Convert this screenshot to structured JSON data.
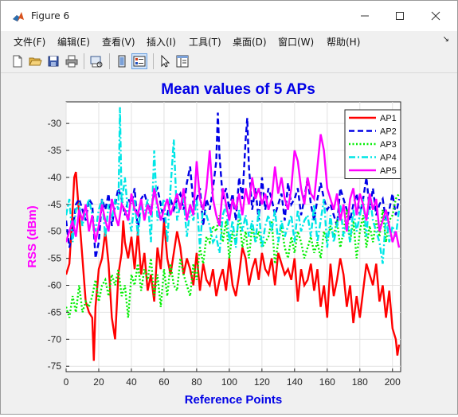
{
  "window": {
    "title": "Figure 6"
  },
  "menu": {
    "file": "文件(F)",
    "edit": "编辑(E)",
    "view": "查看(V)",
    "insert": "插入(I)",
    "tools": "工具(T)",
    "desktop": "桌面(D)",
    "window": "窗口(W)",
    "help": "帮助(H)"
  },
  "toolbar_icons": [
    "new-file-icon",
    "open-folder-icon",
    "save-icon",
    "print-icon",
    "print-preview-icon",
    "figure-tile-icon",
    "property-editor-icon",
    "pointer-icon",
    "plot-browser-icon"
  ],
  "chart_data": {
    "type": "line",
    "title": "Mean values of 5 APs",
    "xlabel": "Reference Points",
    "ylabel": "RSS (dBm)",
    "xlim": [
      0,
      205
    ],
    "ylim": [
      -76,
      -26
    ],
    "xticks": [
      0,
      20,
      40,
      60,
      80,
      100,
      120,
      140,
      160,
      180,
      200
    ],
    "yticks": [
      -75,
      -70,
      -65,
      -60,
      -55,
      -50,
      -45,
      -40,
      -35,
      -30
    ],
    "grid": true,
    "legend_position": "top-right",
    "title_color": "#0000e6",
    "xlabel_color": "#0000e6",
    "ylabel_color": "#ff00ff",
    "series": [
      {
        "name": "AP1",
        "color": "#ff0000",
        "dash": "solid",
        "x": [
          0,
          2,
          4,
          5,
          6,
          8,
          10,
          12,
          14,
          16,
          17,
          18,
          20,
          22,
          24,
          26,
          28,
          30,
          32,
          34,
          35,
          36,
          38,
          40,
          42,
          44,
          46,
          48,
          50,
          52,
          54,
          56,
          58,
          60,
          62,
          64,
          66,
          68,
          70,
          72,
          74,
          76,
          78,
          80,
          82,
          84,
          86,
          88,
          90,
          92,
          94,
          96,
          98,
          100,
          102,
          104,
          106,
          108,
          110,
          112,
          114,
          116,
          118,
          120,
          122,
          124,
          126,
          128,
          130,
          132,
          134,
          136,
          138,
          140,
          142,
          144,
          146,
          148,
          150,
          152,
          154,
          156,
          158,
          160,
          162,
          164,
          166,
          168,
          170,
          172,
          174,
          176,
          178,
          180,
          182,
          184,
          186,
          188,
          190,
          192,
          194,
          196,
          198,
          200,
          202,
          203,
          204
        ],
        "y": [
          -58,
          -56,
          -46,
          -40,
          -39,
          -47,
          -55,
          -63,
          -65,
          -66,
          -74,
          -64,
          -57,
          -55,
          -50,
          -56,
          -66,
          -70,
          -58,
          -54,
          -48,
          -52,
          -55,
          -51,
          -57,
          -50,
          -58,
          -54,
          -61,
          -58,
          -63,
          -53,
          -57,
          -48,
          -55,
          -58,
          -54,
          -50,
          -53,
          -58,
          -55,
          -57,
          -60,
          -54,
          -61,
          -56,
          -59,
          -60,
          -57,
          -62,
          -59,
          -57,
          -61,
          -55,
          -60,
          -62,
          -58,
          -53,
          -55,
          -60,
          -57,
          -55,
          -59,
          -54,
          -57,
          -58,
          -55,
          -60,
          -54,
          -56,
          -58,
          -57,
          -59,
          -55,
          -63,
          -57,
          -60,
          -59,
          -56,
          -61,
          -57,
          -64,
          -60,
          -66,
          -56,
          -62,
          -59,
          -55,
          -58,
          -64,
          -60,
          -67,
          -62,
          -66,
          -61,
          -56,
          -58,
          -60,
          -56,
          -63,
          -60,
          -66,
          -61,
          -68,
          -70,
          -73,
          -71
        ]
      },
      {
        "name": "AP2",
        "color": "#0000e6",
        "dash": "dash",
        "x": [
          0,
          2,
          4,
          6,
          8,
          10,
          12,
          14,
          16,
          18,
          20,
          22,
          24,
          26,
          28,
          30,
          32,
          34,
          36,
          38,
          40,
          42,
          44,
          46,
          48,
          50,
          52,
          54,
          56,
          58,
          60,
          62,
          64,
          66,
          68,
          70,
          72,
          74,
          76,
          78,
          80,
          82,
          84,
          86,
          88,
          90,
          92,
          93,
          94,
          96,
          98,
          100,
          102,
          104,
          106,
          108,
          110,
          111,
          112,
          114,
          116,
          118,
          120,
          122,
          124,
          126,
          128,
          130,
          132,
          134,
          136,
          138,
          140,
          142,
          144,
          146,
          148,
          150,
          152,
          154,
          156,
          158,
          160,
          162,
          164,
          166,
          168,
          170,
          172,
          174,
          176,
          178,
          180,
          182,
          184,
          186,
          188,
          190,
          192,
          194,
          196,
          198,
          200,
          202,
          204
        ],
        "y": [
          -48,
          -53,
          -50,
          -45,
          -44,
          -46,
          -48,
          -44,
          -45,
          -55,
          -52,
          -44,
          -46,
          -43,
          -49,
          -45,
          -42,
          -44,
          -47,
          -44,
          -45,
          -42,
          -50,
          -44,
          -43,
          -45,
          -46,
          -43,
          -42,
          -45,
          -48,
          -47,
          -44,
          -46,
          -44,
          -43,
          -46,
          -41,
          -38,
          -45,
          -44,
          -42,
          -49,
          -44,
          -46,
          -42,
          -37,
          -28,
          -36,
          -44,
          -42,
          -46,
          -43,
          -48,
          -40,
          -44,
          -33,
          -29,
          -38,
          -46,
          -42,
          -48,
          -40,
          -46,
          -42,
          -44,
          -47,
          -45,
          -43,
          -48,
          -41,
          -45,
          -44,
          -42,
          -47,
          -44,
          -40,
          -45,
          -48,
          -44,
          -41,
          -44,
          -46,
          -45,
          -47,
          -49,
          -42,
          -44,
          -46,
          -48,
          -45,
          -43,
          -47,
          -44,
          -40,
          -46,
          -42,
          -47,
          -45,
          -44,
          -48,
          -46,
          -43,
          -47,
          -44
        ]
      },
      {
        "name": "AP3",
        "color": "#00ee00",
        "dash": "dot",
        "x": [
          0,
          2,
          4,
          6,
          8,
          10,
          12,
          14,
          16,
          18,
          20,
          22,
          24,
          26,
          28,
          30,
          32,
          34,
          36,
          38,
          40,
          42,
          44,
          46,
          48,
          50,
          52,
          54,
          56,
          58,
          60,
          62,
          64,
          66,
          68,
          70,
          72,
          74,
          76,
          78,
          80,
          82,
          84,
          86,
          88,
          90,
          92,
          94,
          96,
          98,
          100,
          102,
          104,
          106,
          108,
          110,
          112,
          114,
          116,
          118,
          120,
          122,
          124,
          126,
          128,
          130,
          132,
          134,
          136,
          138,
          140,
          142,
          144,
          146,
          148,
          150,
          152,
          154,
          156,
          158,
          160,
          162,
          164,
          166,
          168,
          170,
          172,
          174,
          176,
          178,
          180,
          182,
          184,
          186,
          188,
          190,
          192,
          194,
          196,
          198,
          200,
          202,
          204
        ],
        "y": [
          -64,
          -66,
          -62,
          -65,
          -60,
          -65,
          -63,
          -64,
          -62,
          -59,
          -63,
          -60,
          -59,
          -62,
          -58,
          -60,
          -57,
          -62,
          -60,
          -66,
          -58,
          -60,
          -56,
          -61,
          -57,
          -59,
          -55,
          -62,
          -58,
          -64,
          -57,
          -62,
          -56,
          -60,
          -61,
          -55,
          -58,
          -60,
          -62,
          -56,
          -59,
          -53,
          -56,
          -51,
          -52,
          -49,
          -50,
          -47,
          -52,
          -48,
          -55,
          -50,
          -52,
          -47,
          -53,
          -50,
          -55,
          -49,
          -52,
          -50,
          -53,
          -52,
          -51,
          -48,
          -56,
          -52,
          -49,
          -53,
          -55,
          -51,
          -54,
          -50,
          -52,
          -55,
          -53,
          -51,
          -54,
          -52,
          -55,
          -50,
          -52,
          -49,
          -51,
          -48,
          -53,
          -50,
          -46,
          -52,
          -48,
          -55,
          -50,
          -47,
          -53,
          -49,
          -52,
          -48,
          -51,
          -46,
          -52,
          -48,
          -47,
          -44,
          -43
        ]
      },
      {
        "name": "AP4",
        "color": "#00e6e6",
        "dash": "dashdot",
        "x": [
          0,
          2,
          4,
          6,
          8,
          10,
          12,
          14,
          16,
          18,
          20,
          22,
          24,
          26,
          28,
          30,
          32,
          33,
          34,
          36,
          38,
          40,
          42,
          44,
          46,
          48,
          50,
          52,
          54,
          56,
          58,
          60,
          62,
          64,
          66,
          68,
          70,
          72,
          74,
          76,
          78,
          80,
          82,
          84,
          86,
          88,
          90,
          92,
          94,
          96,
          98,
          100,
          102,
          104,
          106,
          108,
          110,
          112,
          114,
          116,
          118,
          120,
          122,
          124,
          126,
          128,
          130,
          132,
          134,
          136,
          138,
          140,
          142,
          144,
          146,
          148,
          150,
          152,
          154,
          156,
          158,
          160,
          162,
          164,
          166,
          168,
          170,
          172,
          174,
          176,
          178,
          180,
          182,
          184,
          186,
          188,
          190,
          192,
          194,
          196,
          198,
          200,
          202,
          204
        ],
        "y": [
          -47,
          -44,
          -52,
          -46,
          -45,
          -49,
          -46,
          -44,
          -47,
          -50,
          -46,
          -44,
          -51,
          -45,
          -48,
          -44,
          -46,
          -27,
          -45,
          -40,
          -47,
          -50,
          -44,
          -51,
          -45,
          -47,
          -44,
          -52,
          -35,
          -48,
          -46,
          -44,
          -52,
          -42,
          -33,
          -48,
          -45,
          -44,
          -51,
          -46,
          -48,
          -44,
          -53,
          -45,
          -47,
          -49,
          -52,
          -51,
          -54,
          -47,
          -45,
          -52,
          -48,
          -53,
          -46,
          -50,
          -47,
          -51,
          -48,
          -52,
          -46,
          -53,
          -49,
          -47,
          -50,
          -46,
          -52,
          -48,
          -51,
          -49,
          -47,
          -52,
          -46,
          -50,
          -48,
          -47,
          -51,
          -45,
          -52,
          -48,
          -44,
          -53,
          -47,
          -52,
          -49,
          -45,
          -51,
          -48,
          -52,
          -46,
          -50,
          -47,
          -44,
          -51,
          -43,
          -48,
          -50,
          -52,
          -56,
          -47,
          -52,
          -49,
          -51,
          -46
        ]
      },
      {
        "name": "AP5",
        "color": "#ff00ff",
        "dash": "solid",
        "x": [
          0,
          2,
          4,
          6,
          8,
          10,
          12,
          14,
          16,
          18,
          20,
          22,
          24,
          26,
          28,
          30,
          32,
          34,
          36,
          38,
          40,
          42,
          44,
          46,
          48,
          50,
          52,
          54,
          56,
          58,
          60,
          62,
          64,
          66,
          68,
          70,
          72,
          74,
          76,
          78,
          80,
          82,
          84,
          86,
          88,
          90,
          92,
          94,
          96,
          98,
          100,
          102,
          104,
          106,
          108,
          110,
          112,
          114,
          116,
          118,
          120,
          122,
          124,
          126,
          128,
          130,
          132,
          134,
          136,
          138,
          140,
          142,
          144,
          146,
          148,
          150,
          152,
          154,
          156,
          158,
          160,
          162,
          164,
          166,
          168,
          170,
          172,
          174,
          176,
          178,
          180,
          182,
          184,
          186,
          188,
          190,
          192,
          194,
          196,
          198,
          200,
          202,
          204
        ],
        "y": [
          -52,
          -50,
          -48,
          -51,
          -46,
          -48,
          -45,
          -50,
          -47,
          -52,
          -49,
          -45,
          -48,
          -50,
          -44,
          -47,
          -49,
          -45,
          -46,
          -48,
          -43,
          -46,
          -47,
          -44,
          -48,
          -45,
          -47,
          -42,
          -45,
          -48,
          -46,
          -44,
          -47,
          -45,
          -43,
          -46,
          -42,
          -48,
          -45,
          -47,
          -37,
          -44,
          -46,
          -42,
          -35,
          -44,
          -47,
          -49,
          -42,
          -45,
          -48,
          -44,
          -46,
          -43,
          -47,
          -42,
          -45,
          -40,
          -44,
          -42,
          -45,
          -43,
          -46,
          -44,
          -38,
          -43,
          -40,
          -44,
          -46,
          -42,
          -35,
          -37,
          -42,
          -45,
          -40,
          -43,
          -44,
          -38,
          -32,
          -35,
          -42,
          -44,
          -46,
          -43,
          -48,
          -45,
          -50,
          -44,
          -42,
          -47,
          -43,
          -45,
          -48,
          -43,
          -46,
          -44,
          -50,
          -48,
          -46,
          -49,
          -52,
          -50,
          -53
        ]
      }
    ]
  }
}
